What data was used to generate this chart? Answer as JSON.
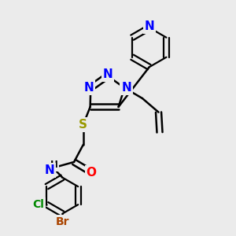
{
  "bg_color": "#ebebeb",
  "bond_color": "#000000",
  "bond_width": 1.8,
  "atom_colors": {
    "N": "#0000FF",
    "O": "#FF0000",
    "S": "#999900",
    "Cl": "#008800",
    "Br": "#AA4400",
    "C": "#000000",
    "H": "#000000"
  },
  "font_size_atom": 11,
  "font_size_small": 9.5
}
